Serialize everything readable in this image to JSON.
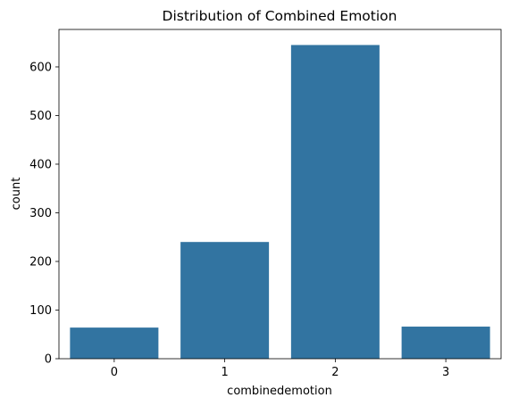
{
  "chart_data": {
    "type": "bar",
    "title": "Distribution of Combined Emotion",
    "xlabel": "combinedemotion",
    "ylabel": "count",
    "categories": [
      "0",
      "1",
      "2",
      "3"
    ],
    "values": [
      64,
      240,
      645,
      66
    ],
    "ylim": [
      0,
      677
    ],
    "yticks": [
      0,
      100,
      200,
      300,
      400,
      500,
      600
    ],
    "grid": false,
    "bar_color": "#3274a1"
  }
}
